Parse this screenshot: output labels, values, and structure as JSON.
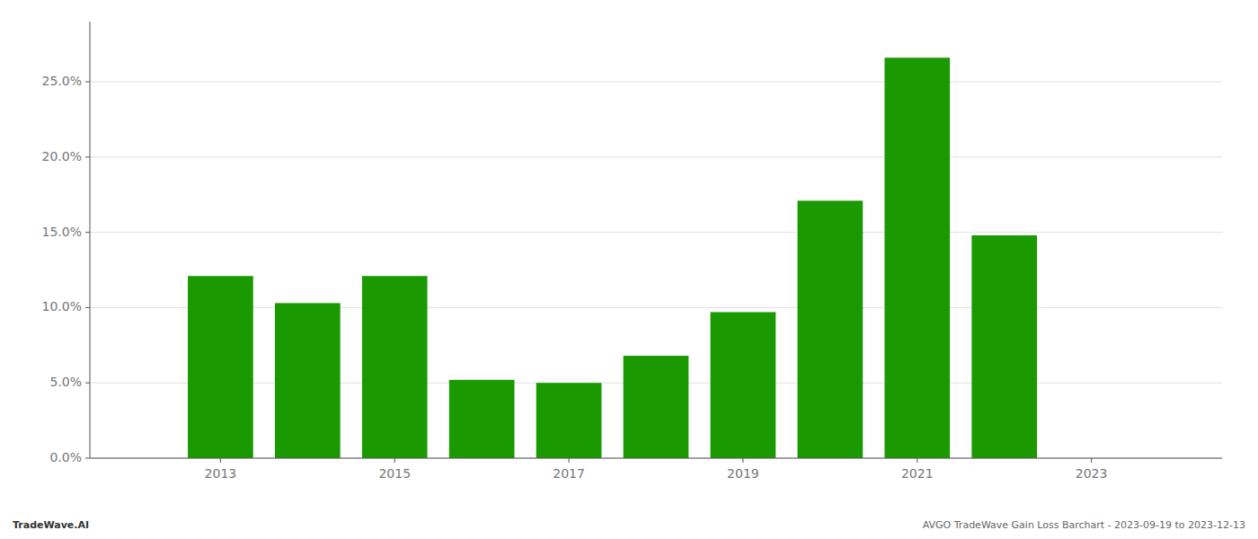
{
  "chart_data": {
    "type": "bar",
    "x": [
      2013,
      2014,
      2015,
      2016,
      2017,
      2018,
      2019,
      2020,
      2021,
      2022
    ],
    "values": [
      0.121,
      0.103,
      0.121,
      0.052,
      0.05,
      0.068,
      0.097,
      0.171,
      0.266,
      0.148
    ],
    "color": "#1a9a00",
    "xlim": [
      2011.5,
      2024.5
    ],
    "xticks": [
      2013,
      2015,
      2017,
      2019,
      2021,
      2023
    ],
    "ylim": [
      0,
      0.29
    ],
    "yticks": [
      {
        "value": 0.0,
        "label": "0.0%"
      },
      {
        "value": 0.05,
        "label": "5.0%"
      },
      {
        "value": 0.1,
        "label": "10.0%"
      },
      {
        "value": 0.15,
        "label": "15.0%"
      },
      {
        "value": 0.2,
        "label": "20.0%"
      },
      {
        "value": 0.25,
        "label": "25.0%"
      }
    ],
    "grid": true,
    "annotations": [
      "TradeWave.AI",
      "AVGO TradeWave Gain Loss Barchart - 2023-09-19 to 2023-12-13"
    ]
  }
}
